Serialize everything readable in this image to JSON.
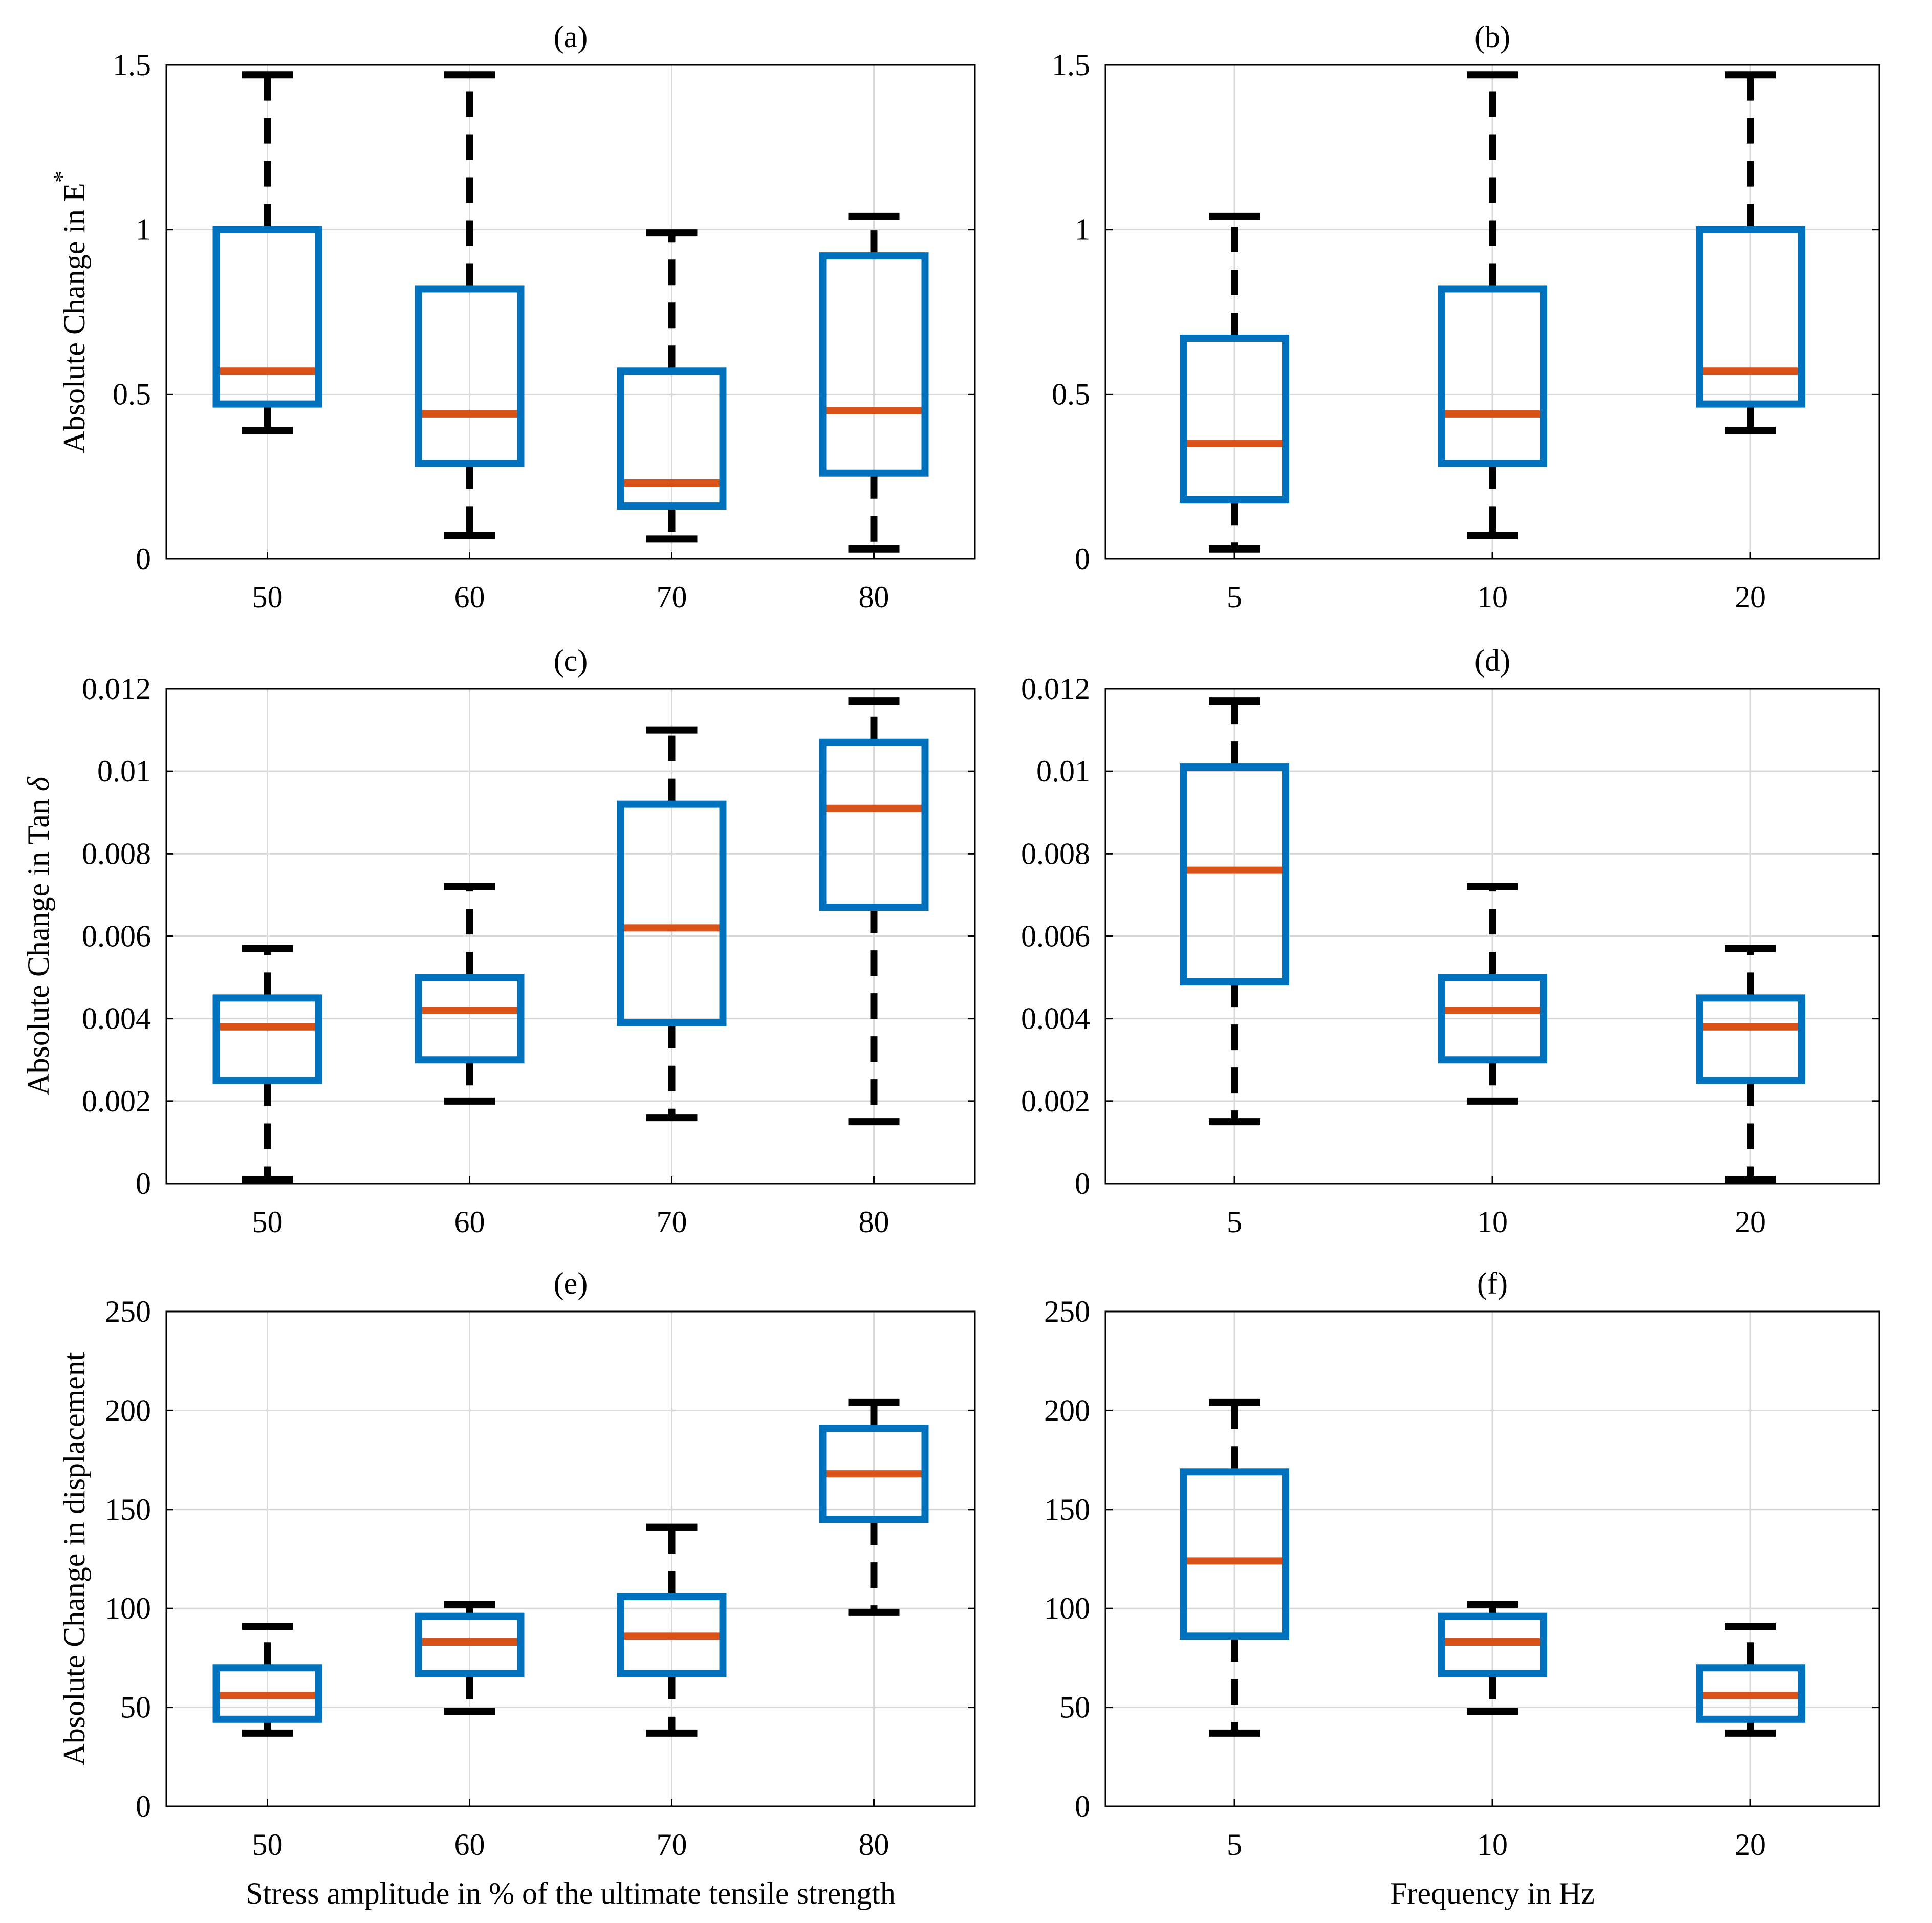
{
  "colors": {
    "box": "#0072BD",
    "median": "#D95319",
    "whisker": "#000000",
    "grid": "#d9d9d9",
    "axis": "#000000"
  },
  "chart_data": [
    {
      "id": "a",
      "type": "box",
      "title": "(a)",
      "xlabel": "",
      "ylabel": "Absolute Change in E",
      "ylabel_superscript": "*",
      "ylim": [
        0,
        1.5
      ],
      "yticks": [
        "0",
        "0.5",
        "1",
        "1.5"
      ],
      "ytick_values": [
        0,
        0.5,
        1,
        1.5
      ],
      "grid": true,
      "categories": [
        "50",
        "60",
        "70",
        "80"
      ],
      "boxes": [
        {
          "min": 0.39,
          "q1": 0.47,
          "median": 0.57,
          "q3": 1.0,
          "max": 1.47
        },
        {
          "min": 0.07,
          "q1": 0.29,
          "median": 0.44,
          "q3": 0.82,
          "max": 1.47
        },
        {
          "min": 0.06,
          "q1": 0.16,
          "median": 0.23,
          "q3": 0.57,
          "max": 0.99
        },
        {
          "min": 0.03,
          "q1": 0.26,
          "median": 0.45,
          "q3": 0.92,
          "max": 1.04
        }
      ]
    },
    {
      "id": "b",
      "type": "box",
      "title": "(b)",
      "xlabel": "",
      "ylabel": "",
      "ylim": [
        0,
        1.5
      ],
      "yticks": [
        "0",
        "0.5",
        "1",
        "1.5"
      ],
      "ytick_values": [
        0,
        0.5,
        1,
        1.5
      ],
      "grid": true,
      "categories": [
        "5",
        "10",
        "20"
      ],
      "boxes": [
        {
          "min": 0.03,
          "q1": 0.18,
          "median": 0.35,
          "q3": 0.67,
          "max": 1.04
        },
        {
          "min": 0.07,
          "q1": 0.29,
          "median": 0.44,
          "q3": 0.82,
          "max": 1.47
        },
        {
          "min": 0.39,
          "q1": 0.47,
          "median": 0.57,
          "q3": 1.0,
          "max": 1.47
        }
      ]
    },
    {
      "id": "c",
      "type": "box",
      "title": "(c)",
      "xlabel": "",
      "ylabel": "Absolute Change in Tan δ",
      "ylim": [
        0,
        0.012
      ],
      "yticks": [
        "0",
        "0.002",
        "0.004",
        "0.006",
        "0.008",
        "0.01",
        "0.012"
      ],
      "ytick_values": [
        0,
        0.002,
        0.004,
        0.006,
        0.008,
        0.01,
        0.012
      ],
      "grid": true,
      "categories": [
        "50",
        "60",
        "70",
        "80"
      ],
      "boxes": [
        {
          "min": 0.0001,
          "q1": 0.0025,
          "median": 0.0038,
          "q3": 0.0045,
          "max": 0.0057
        },
        {
          "min": 0.002,
          "q1": 0.003,
          "median": 0.0042,
          "q3": 0.005,
          "max": 0.0072
        },
        {
          "min": 0.0016,
          "q1": 0.0039,
          "median": 0.0062,
          "q3": 0.0092,
          "max": 0.011
        },
        {
          "min": 0.0015,
          "q1": 0.0067,
          "median": 0.0091,
          "q3": 0.0107,
          "max": 0.0117
        }
      ]
    },
    {
      "id": "d",
      "type": "box",
      "title": "(d)",
      "xlabel": "",
      "ylabel": "",
      "ylim": [
        0,
        0.012
      ],
      "yticks": [
        "0",
        "0.002",
        "0.004",
        "0.006",
        "0.008",
        "0.01",
        "0.012"
      ],
      "ytick_values": [
        0,
        0.002,
        0.004,
        0.006,
        0.008,
        0.01,
        0.012
      ],
      "grid": true,
      "categories": [
        "5",
        "10",
        "20"
      ],
      "boxes": [
        {
          "min": 0.0015,
          "q1": 0.0049,
          "median": 0.0076,
          "q3": 0.0101,
          "max": 0.0117
        },
        {
          "min": 0.002,
          "q1": 0.003,
          "median": 0.0042,
          "q3": 0.005,
          "max": 0.0072
        },
        {
          "min": 0.0001,
          "q1": 0.0025,
          "median": 0.0038,
          "q3": 0.0045,
          "max": 0.0057
        }
      ]
    },
    {
      "id": "e",
      "type": "box",
      "title": "(e)",
      "xlabel": "Stress amplitude in % of the ultimate tensile strength",
      "ylabel": "Absolute Change in displacement",
      "ylim": [
        0,
        250
      ],
      "yticks": [
        "0",
        "50",
        "100",
        "150",
        "200",
        "250"
      ],
      "ytick_values": [
        0,
        50,
        100,
        150,
        200,
        250
      ],
      "grid": true,
      "categories": [
        "50",
        "60",
        "70",
        "80"
      ],
      "boxes": [
        {
          "min": 37,
          "q1": 44,
          "median": 56,
          "q3": 70,
          "max": 91
        },
        {
          "min": 48,
          "q1": 67,
          "median": 83,
          "q3": 96,
          "max": 102
        },
        {
          "min": 37,
          "q1": 67,
          "median": 86,
          "q3": 106,
          "max": 141
        },
        {
          "min": 98,
          "q1": 145,
          "median": 168,
          "q3": 191,
          "max": 204
        }
      ]
    },
    {
      "id": "f",
      "type": "box",
      "title": "(f)",
      "xlabel": "Frequency in Hz",
      "ylabel": "",
      "ylim": [
        0,
        250
      ],
      "yticks": [
        "0",
        "50",
        "100",
        "150",
        "200",
        "250"
      ],
      "ytick_values": [
        0,
        50,
        100,
        150,
        200,
        250
      ],
      "grid": true,
      "categories": [
        "5",
        "10",
        "20"
      ],
      "boxes": [
        {
          "min": 37,
          "q1": 86,
          "median": 124,
          "q3": 169,
          "max": 204
        },
        {
          "min": 48,
          "q1": 67,
          "median": 83,
          "q3": 96,
          "max": 102
        },
        {
          "min": 37,
          "q1": 44,
          "median": 56,
          "q3": 70,
          "max": 91
        }
      ]
    }
  ]
}
